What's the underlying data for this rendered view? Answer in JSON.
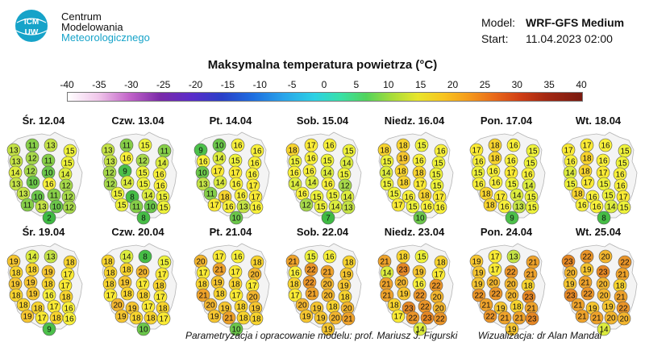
{
  "org": {
    "line1": "Centrum",
    "line2": "Modelowania",
    "line3": "Meteorologicznego",
    "logo_text": "ICM UW"
  },
  "model": {
    "label": "Model:",
    "name": "WRF-GFS Medium",
    "start_label": "Start:",
    "start": "11.04.2023 02:00"
  },
  "title": "Maksymalna temperatura powietrza (°C)",
  "scale": {
    "ticks": [
      "-40",
      "-35",
      "-30",
      "-25",
      "-20",
      "-15",
      "-10",
      "-5",
      "0",
      "5",
      "10",
      "15",
      "20",
      "25",
      "30",
      "35",
      "40"
    ]
  },
  "footer": {
    "credit": "Parametryzacja i opracowanie modelu: prof. Mariusz J. Figurski",
    "viz": "Wizualizacja: dr Alan Mandal"
  },
  "colors": {
    "t2": "#3fba43",
    "t7": "#3fba43",
    "t8": "#46bd46",
    "t9": "#4cc04a",
    "t10": "#6bc64a",
    "t11": "#86ce48",
    "t12": "#a6d84a",
    "t13": "#c4e246",
    "t14": "#dcec3e",
    "t15": "#eef23a",
    "t16": "#f8f03a",
    "t17": "#faea34",
    "t18": "#f7d32e",
    "t19": "#f5c530",
    "t20": "#f2b52e",
    "t21": "#eea22a",
    "t22": "#e99428",
    "t23": "#e58724"
  },
  "days": [
    {
      "date": "Śr. 12.04",
      "temps": [
        13,
        11,
        13,
        15,
        13,
        12,
        11,
        15,
        14,
        12,
        10,
        14,
        13,
        10,
        16,
        12,
        13,
        10,
        11,
        12,
        11,
        13,
        10,
        12,
        2
      ]
    },
    {
      "date": "Czw. 13.04",
      "temps": [
        13,
        11,
        15,
        11,
        13,
        16,
        12,
        14,
        12,
        9,
        15,
        16,
        12,
        14,
        15,
        16,
        15,
        8,
        14,
        15,
        15,
        11,
        10,
        15,
        8
      ]
    },
    {
      "date": "Pt. 14.04",
      "temps": [
        9,
        10,
        16,
        16,
        16,
        14,
        15,
        16,
        10,
        17,
        17,
        16,
        13,
        14,
        16,
        17,
        11,
        18,
        16,
        17,
        17,
        16,
        13,
        16,
        10
      ]
    },
    {
      "date": "Sob. 15.04",
      "temps": [
        18,
        17,
        16,
        15,
        15,
        16,
        15,
        14,
        16,
        16,
        14,
        15,
        14,
        14,
        16,
        12,
        16,
        15,
        15,
        14,
        12,
        15,
        14,
        13,
        7
      ]
    },
    {
      "date": "Niedz. 16.04",
      "temps": [
        18,
        18,
        15,
        16,
        15,
        19,
        16,
        15,
        14,
        18,
        18,
        15,
        15,
        18,
        17,
        15,
        15,
        16,
        18,
        17,
        17,
        15,
        16,
        16,
        10
      ]
    },
    {
      "date": "Pon. 17.04",
      "temps": [
        17,
        18,
        16,
        15,
        16,
        18,
        16,
        15,
        15,
        16,
        17,
        16,
        16,
        16,
        15,
        14,
        18,
        17,
        14,
        15,
        18,
        16,
        13,
        15,
        9
      ]
    },
    {
      "date": "Wt. 18.04",
      "temps": [
        17,
        17,
        16,
        15,
        16,
        18,
        16,
        15,
        14,
        18,
        17,
        16,
        15,
        17,
        15,
        16,
        18,
        16,
        15,
        17,
        16,
        16,
        14,
        15,
        8
      ]
    },
    {
      "date": "Śr. 19.04",
      "temps": [
        19,
        14,
        13,
        18,
        18,
        18,
        19,
        17,
        19,
        19,
        18,
        17,
        18,
        19,
        16,
        18,
        18,
        18,
        17,
        16,
        19,
        17,
        18,
        16,
        9
      ]
    },
    {
      "date": "Czw. 20.04",
      "temps": [
        18,
        14,
        8,
        15,
        18,
        18,
        20,
        17,
        18,
        19,
        17,
        18,
        17,
        18,
        18,
        17,
        20,
        19,
        17,
        18,
        19,
        18,
        18,
        17,
        10
      ]
    },
    {
      "date": "Pt. 21.04",
      "temps": [
        20,
        17,
        16,
        18,
        17,
        21,
        17,
        20,
        18,
        19,
        18,
        17,
        21,
        18,
        17,
        20,
        20,
        19,
        18,
        19,
        19,
        21,
        18,
        18,
        10
      ]
    },
    {
      "date": "Sob. 22.04",
      "temps": [
        21,
        15,
        16,
        18,
        16,
        22,
        21,
        19,
        18,
        22,
        20,
        19,
        17,
        21,
        20,
        18,
        20,
        19,
        18,
        20,
        19,
        19,
        20,
        21,
        19
      ]
    },
    {
      "date": "Niedz. 23.04",
      "temps": [
        21,
        18,
        15,
        18,
        14,
        23,
        19,
        17,
        21,
        20,
        16,
        22,
        21,
        19,
        22,
        20,
        18,
        23,
        22,
        20,
        17,
        22,
        23,
        22,
        14
      ]
    },
    {
      "date": "Pon. 24.04",
      "temps": [
        19,
        17,
        13,
        21,
        19,
        17,
        22,
        21,
        19,
        20,
        20,
        18,
        22,
        22,
        20,
        23,
        21,
        19,
        18,
        21,
        22,
        21,
        21,
        23,
        19
      ]
    },
    {
      "date": "Wt. 25.04",
      "temps": [
        23,
        22,
        20,
        22,
        20,
        19,
        23,
        21,
        19,
        21,
        20,
        18,
        23,
        22,
        20,
        21,
        21,
        19,
        19,
        22,
        21,
        21,
        20,
        20,
        14
      ]
    }
  ]
}
